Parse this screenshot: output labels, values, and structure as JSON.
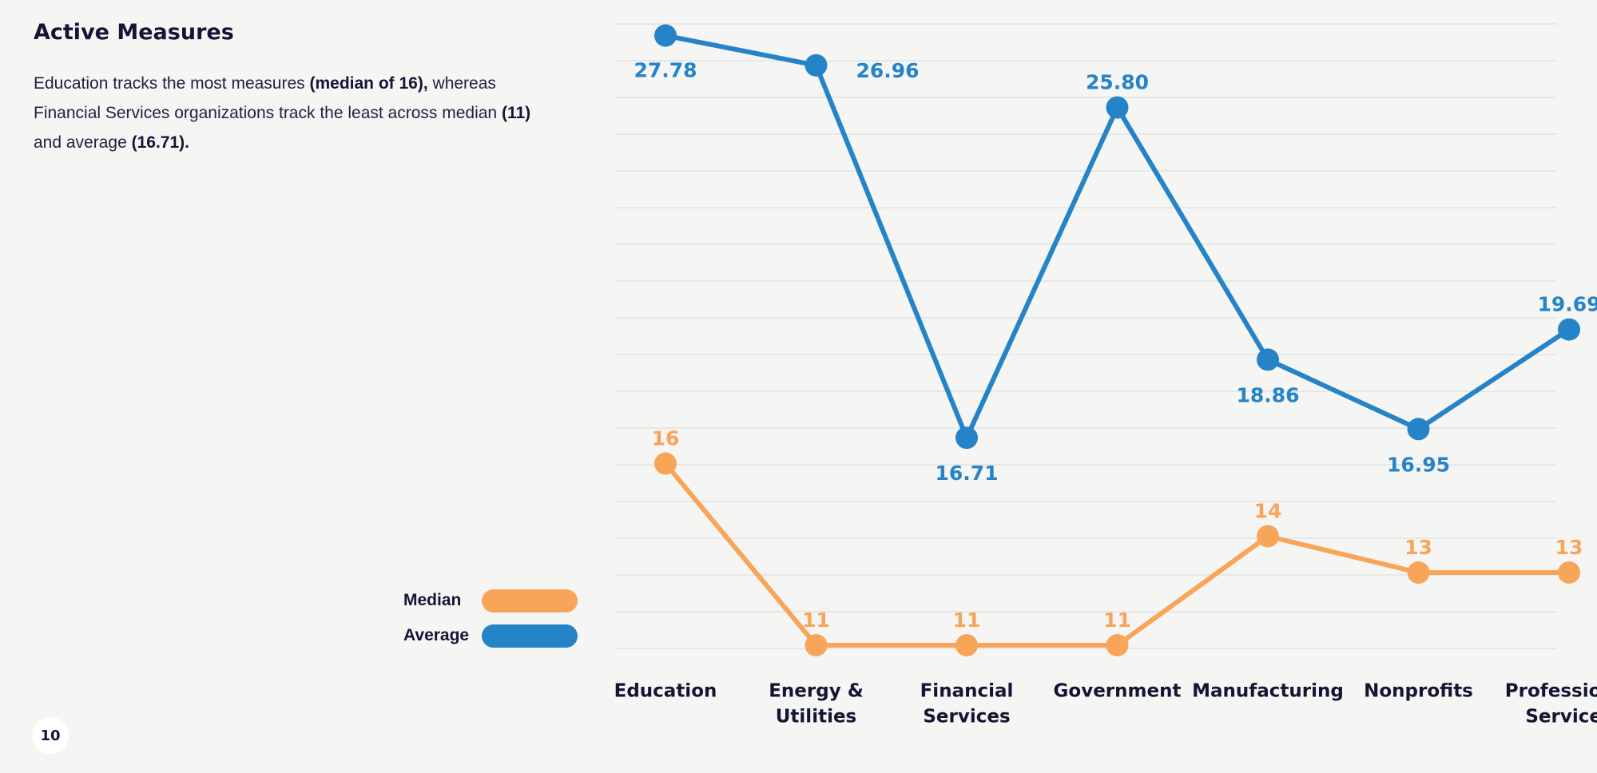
{
  "title": "Active Measures",
  "description": {
    "part1": "Education tracks the most measures ",
    "bold1": "(median of 16),",
    "part2": " whereas Financial Services organizations track the least across median ",
    "bold2": "(11)",
    "part3": " and average ",
    "bold3": "(16.71)."
  },
  "legend": {
    "median_label": "Median",
    "average_label": "Average"
  },
  "page_number": "10",
  "colors": {
    "median": "#f8a55a",
    "average": "#2583c7",
    "text": "#121634"
  },
  "chart_data": {
    "type": "line",
    "categories": [
      [
        "Education"
      ],
      [
        "Energy &",
        "Utilities"
      ],
      [
        "Financial",
        "Services"
      ],
      [
        "Government"
      ],
      [
        "Manufacturing"
      ],
      [
        "Nonprofits"
      ],
      [
        "Professional",
        "Services"
      ]
    ],
    "series": [
      {
        "name": "Median",
        "color": "#f8a55a",
        "values": [
          16,
          11,
          11,
          11,
          14,
          13,
          13
        ],
        "labels": [
          "16",
          "11",
          "11",
          "11",
          "14",
          "13",
          "13"
        ]
      },
      {
        "name": "Average",
        "color": "#2583c7",
        "values": [
          27.78,
          26.96,
          16.71,
          25.8,
          18.86,
          16.95,
          19.69
        ],
        "labels": [
          "27.78",
          "26.96",
          "16.71",
          "25.80",
          "18.86",
          "16.95",
          "19.69"
        ]
      }
    ],
    "legend_position": "bottom-left",
    "grid": true
  }
}
